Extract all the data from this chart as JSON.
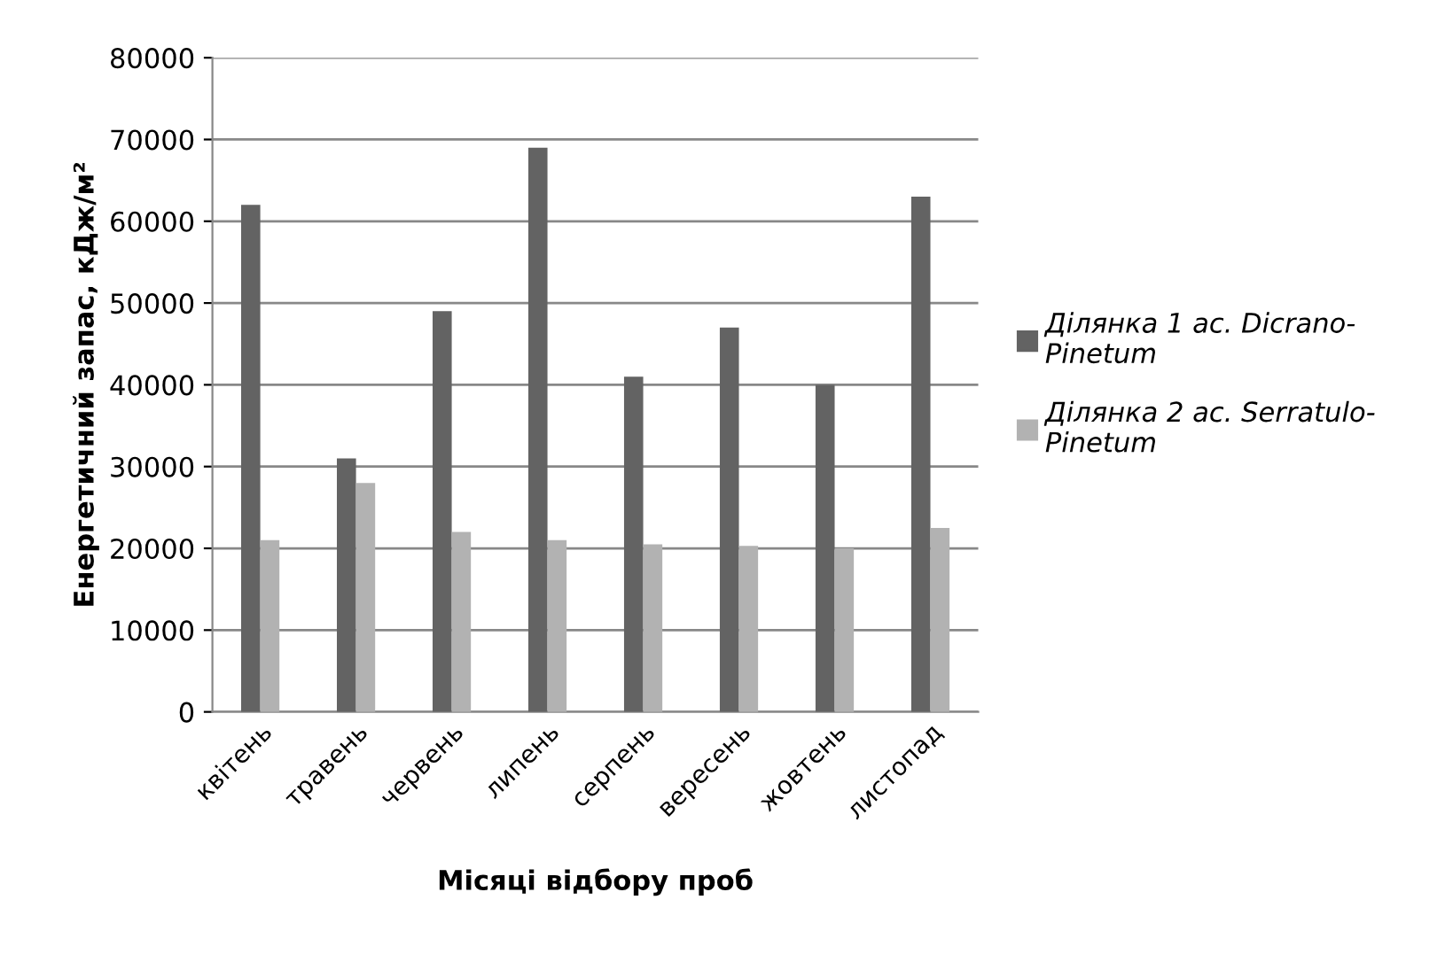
{
  "chart_data": {
    "type": "bar",
    "xlabel": "Місяці відбору проб",
    "ylabel": "Енергетичний запас, кДж/м²",
    "categories": [
      "квітень",
      "травень",
      "червень",
      "липень",
      "серпень",
      "вересень",
      "жовтень",
      "листопад"
    ],
    "series": [
      {
        "name": "Ділянка 1 ас. Dicrano-Pinetum",
        "color": "#636363",
        "values": [
          62000,
          31000,
          49000,
          69000,
          41000,
          47000,
          40000,
          63000
        ]
      },
      {
        "name": "Ділянка 2 ас. Serratulo-Pinetum",
        "color": "#b2b2b2",
        "values": [
          21000,
          28000,
          22000,
          21000,
          20500,
          20300,
          20000,
          22500
        ]
      }
    ],
    "ylim": [
      0,
      80000
    ],
    "yticks": [
      0,
      10000,
      20000,
      30000,
      40000,
      50000,
      60000,
      70000,
      80000
    ],
    "grid": "y",
    "legend": "right"
  }
}
